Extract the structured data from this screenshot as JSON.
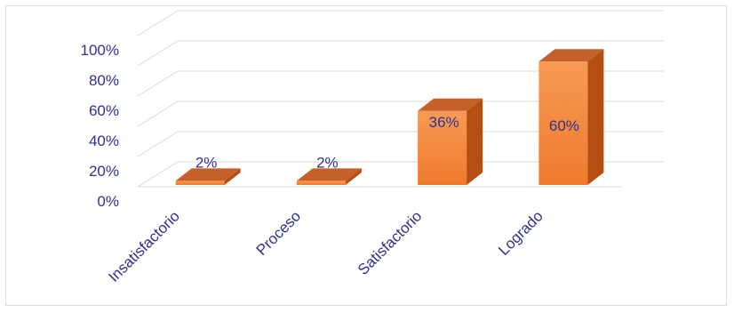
{
  "chart_data": {
    "type": "bar",
    "categories": [
      "Insatisfactorio",
      "Proceso",
      "Satisfactorio",
      "Logrado"
    ],
    "values": [
      2,
      2,
      36,
      60
    ],
    "data_labels": [
      "2%",
      "2%",
      "36%",
      "60%"
    ],
    "y_ticks": [
      "0%",
      "20%",
      "40%",
      "60%",
      "80%",
      "100%"
    ],
    "ylim": [
      0,
      100
    ],
    "grid": true,
    "legend": "none",
    "colors": {
      "front": "#ef7a2d",
      "front_top": "#f79a55",
      "side": "#b54e12",
      "top": "#c5602a",
      "grid": "#d9d9d9",
      "text": "#2e3192"
    }
  }
}
